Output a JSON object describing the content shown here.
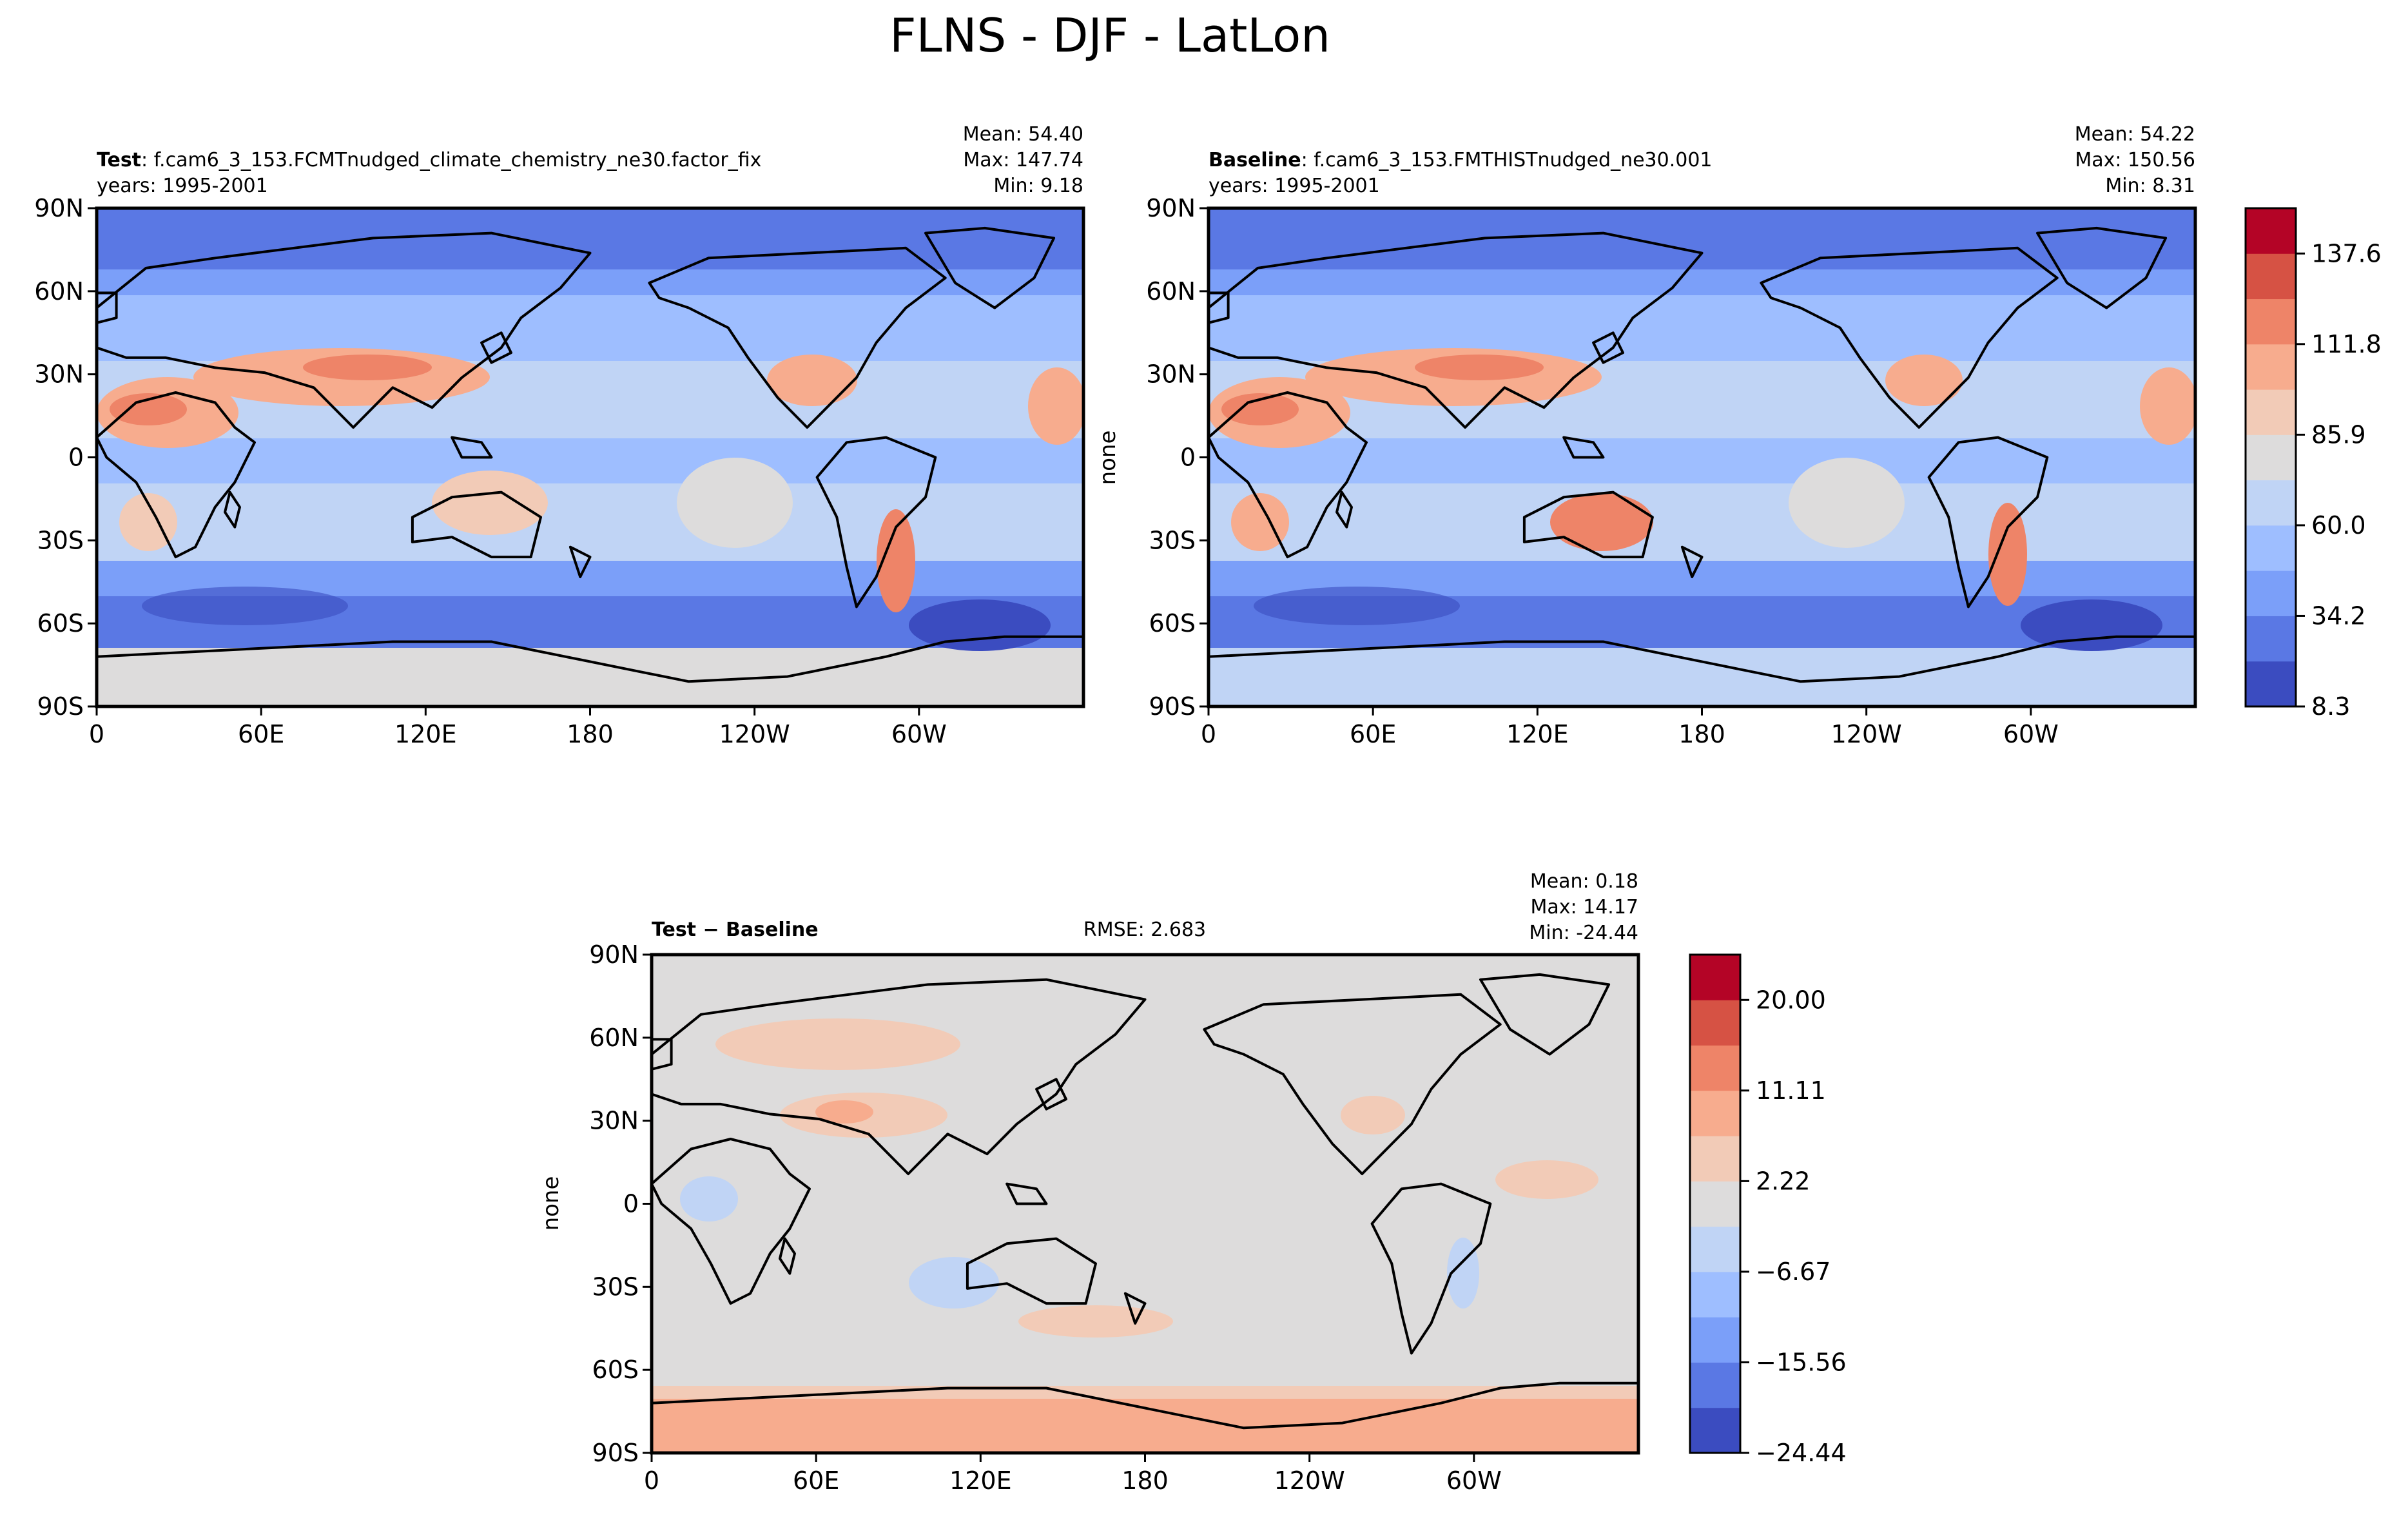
{
  "figure": {
    "title": "FLNS - DJF - LatLon"
  },
  "chart_data": [
    {
      "type": "heatmap",
      "panel": "test",
      "title_bold": "Test",
      "title_rest": ": f.cam6_3_153.FCMTnudged_climate_chemistry_ne30.factor_fix",
      "years": "years: 1995-2001",
      "stats": [
        "Mean: 54.40",
        "Max: 147.74",
        "Min:  9.18"
      ],
      "mean": 54.4,
      "max": 147.74,
      "min": 9.18,
      "xlabel": "",
      "ylabel": "",
      "xticks": [
        "0",
        "60E",
        "120E",
        "180",
        "120W",
        "60W"
      ],
      "yticks": [
        "90N",
        "60N",
        "30N",
        "0",
        "30S",
        "60S",
        "90S"
      ],
      "xlim": [
        0,
        360
      ],
      "ylim": [
        -90,
        90
      ]
    },
    {
      "type": "heatmap",
      "panel": "baseline",
      "title_bold": "Baseline",
      "title_rest": ": f.cam6_3_153.FMTHISTnudged_ne30.001",
      "years": "years: 1995-2001",
      "stats": [
        "Mean: 54.22",
        "Max: 150.56",
        "Min:  8.31"
      ],
      "mean": 54.22,
      "max": 150.56,
      "min": 8.31,
      "xlabel": "",
      "ylabel": "none",
      "xticks": [
        "0",
        "60E",
        "120E",
        "180",
        "120W",
        "60W"
      ],
      "yticks": [
        "90N",
        "60N",
        "30N",
        "0",
        "30S",
        "60S",
        "90S"
      ],
      "xlim": [
        0,
        360
      ],
      "ylim": [
        -90,
        90
      ],
      "colorbar": {
        "levels": [
          8.3,
          34.2,
          60.0,
          85.9,
          111.8,
          137.6
        ],
        "tick_labels": [
          "137.6",
          "111.8",
          "85.9",
          "60.0",
          "34.2",
          "8.3"
        ]
      }
    },
    {
      "type": "heatmap",
      "panel": "difference",
      "title_bold": "Test − Baseline",
      "rmse": "RMSE: 2.683",
      "stats": [
        "Mean:  0.18",
        "Max: 14.17",
        "Min: -24.44"
      ],
      "mean": 0.18,
      "max": 14.17,
      "min": -24.44,
      "rmse_value": 2.683,
      "xlabel": "",
      "ylabel": "none",
      "xticks": [
        "0",
        "60E",
        "120E",
        "180",
        "120W",
        "60W"
      ],
      "yticks": [
        "90N",
        "60N",
        "30N",
        "0",
        "30S",
        "60S",
        "90S"
      ],
      "xlim": [
        0,
        360
      ],
      "ylim": [
        -90,
        90
      ],
      "colorbar": {
        "levels": [
          -24.44,
          -15.56,
          -6.67,
          2.22,
          11.11,
          20.0
        ],
        "tick_labels": [
          "20.00",
          "11.11",
          "2.22",
          "−6.67",
          "−15.56",
          "−24.44"
        ]
      }
    }
  ],
  "colors": {
    "cmap": [
      "#3b4cc0",
      "#5a78e4",
      "#7b9ff9",
      "#9ebeff",
      "#c0d4f5",
      "#dddcdc",
      "#f2cbb7",
      "#f7ac8e",
      "#ee8468",
      "#d65244",
      "#b40426"
    ],
    "frame": "#000000",
    "land_outline": "#000000"
  }
}
